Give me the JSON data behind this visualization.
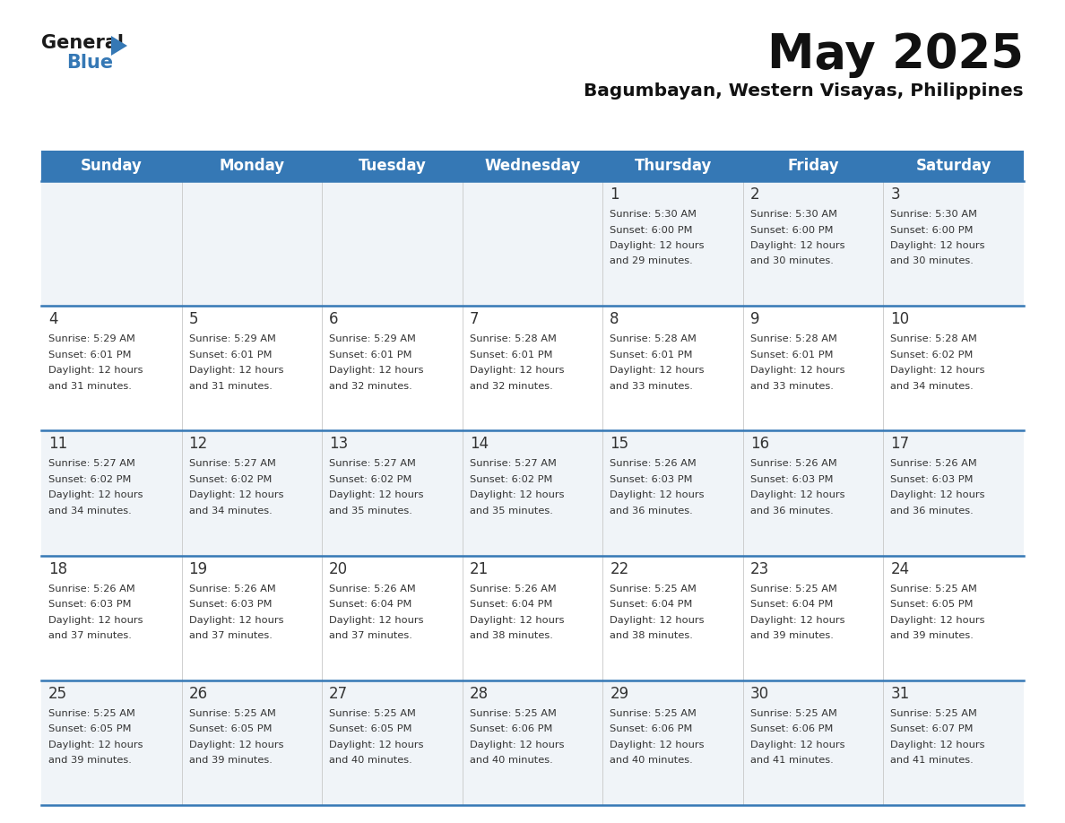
{
  "title": "May 2025",
  "subtitle": "Bagumbayan, Western Visayas, Philippines",
  "header_bg": "#3578b5",
  "header_text": "#ffffff",
  "days_of_week": [
    "Sunday",
    "Monday",
    "Tuesday",
    "Wednesday",
    "Thursday",
    "Friday",
    "Saturday"
  ],
  "cell_bg_odd": "#f0f4f8",
  "cell_bg_even": "#ffffff",
  "cell_text": "#333333",
  "day_num_color": "#333333",
  "border_color": "#3578b5",
  "logo_general_color": "#1a1a1a",
  "logo_blue_color": "#3578b5",
  "logo_triangle_color": "#3578b5",
  "calendar": [
    [
      null,
      null,
      null,
      null,
      {
        "day": 1,
        "sunrise": "5:30 AM",
        "sunset": "6:00 PM",
        "daylight": "12 hours",
        "daylight2": "and 29 minutes."
      },
      {
        "day": 2,
        "sunrise": "5:30 AM",
        "sunset": "6:00 PM",
        "daylight": "12 hours",
        "daylight2": "and 30 minutes."
      },
      {
        "day": 3,
        "sunrise": "5:30 AM",
        "sunset": "6:00 PM",
        "daylight": "12 hours",
        "daylight2": "and 30 minutes."
      }
    ],
    [
      {
        "day": 4,
        "sunrise": "5:29 AM",
        "sunset": "6:01 PM",
        "daylight": "12 hours",
        "daylight2": "and 31 minutes."
      },
      {
        "day": 5,
        "sunrise": "5:29 AM",
        "sunset": "6:01 PM",
        "daylight": "12 hours",
        "daylight2": "and 31 minutes."
      },
      {
        "day": 6,
        "sunrise": "5:29 AM",
        "sunset": "6:01 PM",
        "daylight": "12 hours",
        "daylight2": "and 32 minutes."
      },
      {
        "day": 7,
        "sunrise": "5:28 AM",
        "sunset": "6:01 PM",
        "daylight": "12 hours",
        "daylight2": "and 32 minutes."
      },
      {
        "day": 8,
        "sunrise": "5:28 AM",
        "sunset": "6:01 PM",
        "daylight": "12 hours",
        "daylight2": "and 33 minutes."
      },
      {
        "day": 9,
        "sunrise": "5:28 AM",
        "sunset": "6:01 PM",
        "daylight": "12 hours",
        "daylight2": "and 33 minutes."
      },
      {
        "day": 10,
        "sunrise": "5:28 AM",
        "sunset": "6:02 PM",
        "daylight": "12 hours",
        "daylight2": "and 34 minutes."
      }
    ],
    [
      {
        "day": 11,
        "sunrise": "5:27 AM",
        "sunset": "6:02 PM",
        "daylight": "12 hours",
        "daylight2": "and 34 minutes."
      },
      {
        "day": 12,
        "sunrise": "5:27 AM",
        "sunset": "6:02 PM",
        "daylight": "12 hours",
        "daylight2": "and 34 minutes."
      },
      {
        "day": 13,
        "sunrise": "5:27 AM",
        "sunset": "6:02 PM",
        "daylight": "12 hours",
        "daylight2": "and 35 minutes."
      },
      {
        "day": 14,
        "sunrise": "5:27 AM",
        "sunset": "6:02 PM",
        "daylight": "12 hours",
        "daylight2": "and 35 minutes."
      },
      {
        "day": 15,
        "sunrise": "5:26 AM",
        "sunset": "6:03 PM",
        "daylight": "12 hours",
        "daylight2": "and 36 minutes."
      },
      {
        "day": 16,
        "sunrise": "5:26 AM",
        "sunset": "6:03 PM",
        "daylight": "12 hours",
        "daylight2": "and 36 minutes."
      },
      {
        "day": 17,
        "sunrise": "5:26 AM",
        "sunset": "6:03 PM",
        "daylight": "12 hours",
        "daylight2": "and 36 minutes."
      }
    ],
    [
      {
        "day": 18,
        "sunrise": "5:26 AM",
        "sunset": "6:03 PM",
        "daylight": "12 hours",
        "daylight2": "and 37 minutes."
      },
      {
        "day": 19,
        "sunrise": "5:26 AM",
        "sunset": "6:03 PM",
        "daylight": "12 hours",
        "daylight2": "and 37 minutes."
      },
      {
        "day": 20,
        "sunrise": "5:26 AM",
        "sunset": "6:04 PM",
        "daylight": "12 hours",
        "daylight2": "and 37 minutes."
      },
      {
        "day": 21,
        "sunrise": "5:26 AM",
        "sunset": "6:04 PM",
        "daylight": "12 hours",
        "daylight2": "and 38 minutes."
      },
      {
        "day": 22,
        "sunrise": "5:25 AM",
        "sunset": "6:04 PM",
        "daylight": "12 hours",
        "daylight2": "and 38 minutes."
      },
      {
        "day": 23,
        "sunrise": "5:25 AM",
        "sunset": "6:04 PM",
        "daylight": "12 hours",
        "daylight2": "and 39 minutes."
      },
      {
        "day": 24,
        "sunrise": "5:25 AM",
        "sunset": "6:05 PM",
        "daylight": "12 hours",
        "daylight2": "and 39 minutes."
      }
    ],
    [
      {
        "day": 25,
        "sunrise": "5:25 AM",
        "sunset": "6:05 PM",
        "daylight": "12 hours",
        "daylight2": "and 39 minutes."
      },
      {
        "day": 26,
        "sunrise": "5:25 AM",
        "sunset": "6:05 PM",
        "daylight": "12 hours",
        "daylight2": "and 39 minutes."
      },
      {
        "day": 27,
        "sunrise": "5:25 AM",
        "sunset": "6:05 PM",
        "daylight": "12 hours",
        "daylight2": "and 40 minutes."
      },
      {
        "day": 28,
        "sunrise": "5:25 AM",
        "sunset": "6:06 PM",
        "daylight": "12 hours",
        "daylight2": "and 40 minutes."
      },
      {
        "day": 29,
        "sunrise": "5:25 AM",
        "sunset": "6:06 PM",
        "daylight": "12 hours",
        "daylight2": "and 40 minutes."
      },
      {
        "day": 30,
        "sunrise": "5:25 AM",
        "sunset": "6:06 PM",
        "daylight": "12 hours",
        "daylight2": "and 41 minutes."
      },
      {
        "day": 31,
        "sunrise": "5:25 AM",
        "sunset": "6:07 PM",
        "daylight": "12 hours",
        "daylight2": "and 41 minutes."
      }
    ]
  ]
}
